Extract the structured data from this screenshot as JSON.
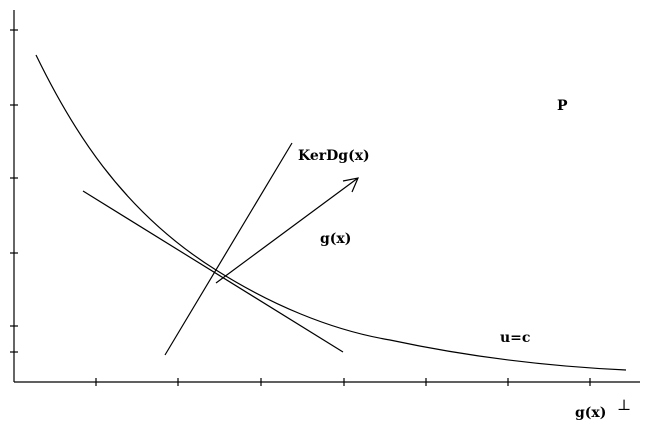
{
  "labels": {
    "p": "P",
    "ker": "KerDg(x)",
    "g": "g(x)",
    "u": "u=c",
    "g_perp": "g(x)",
    "perp_symbol": "⊥"
  }
}
